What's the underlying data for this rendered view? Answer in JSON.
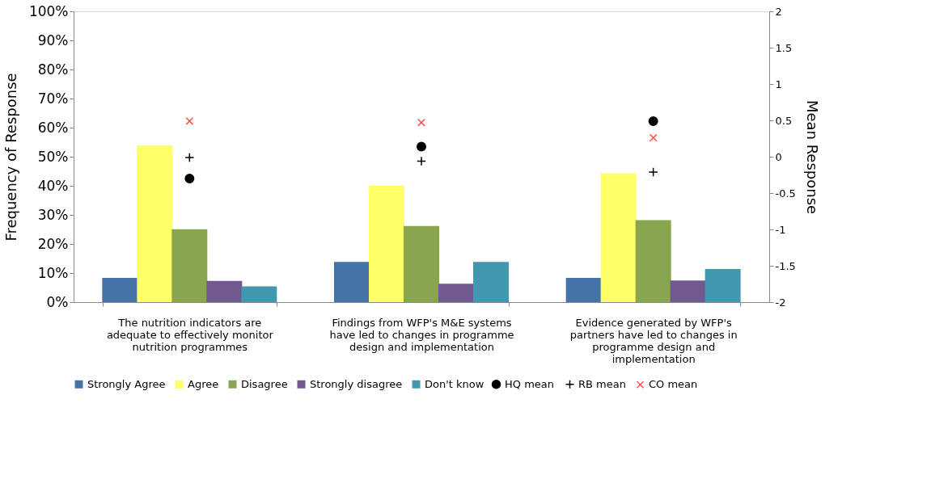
{
  "chart_data": {
    "type": "bar",
    "ylabel": "Frequency of Response",
    "y2label": "Mean Response",
    "categories": [
      "The nutrition indicators are adequate to effectively monitor nutrition programmes",
      "Findings from WFP's M&E systems have led to changes in programme design and implementation",
      "Evidence generated by WFP's partners have led to changes in programme design and implementation"
    ],
    "series": [
      {
        "name": "Strongly Agree",
        "color": "#4572a7",
        "values": [
          8.3,
          13.8,
          8.3
        ]
      },
      {
        "name": "Agree",
        "color": "#ffff66",
        "values": [
          53.8,
          40.1,
          44.3
        ]
      },
      {
        "name": "Disagree",
        "color": "#89a54e",
        "values": [
          25.1,
          26.2,
          28.2
        ]
      },
      {
        "name": "Strongly disagree",
        "color": "#71588f",
        "values": [
          7.3,
          6.3,
          7.4
        ]
      },
      {
        "name": "Don't know",
        "color": "#4198af",
        "values": [
          5.4,
          13.8,
          11.4
        ]
      },
      {
        "name": "HQ mean",
        "type": "scatter",
        "axis": "y2",
        "marker": "circle",
        "color": "#000000",
        "values": [
          -0.3,
          0.14,
          0.49
        ]
      },
      {
        "name": "RB mean",
        "type": "scatter",
        "axis": "y2",
        "marker": "plus",
        "color": "#000000",
        "values": [
          -0.01,
          -0.06,
          -0.21
        ]
      },
      {
        "name": "CO mean",
        "type": "scatter",
        "axis": "y2",
        "marker": "x",
        "color": "#ff5050",
        "values": [
          0.49,
          0.47,
          0.26
        ]
      }
    ],
    "ylim": [
      0,
      100
    ],
    "yticks": [
      {
        "value": 0,
        "label": "0%"
      },
      {
        "value": 10,
        "label": "10%"
      },
      {
        "value": 20,
        "label": "20%"
      },
      {
        "value": 30,
        "label": "30%"
      },
      {
        "value": 40,
        "label": "40%"
      },
      {
        "value": 50,
        "label": "50%"
      },
      {
        "value": 60,
        "label": "60%"
      },
      {
        "value": 70,
        "label": "70%"
      },
      {
        "value": 80,
        "label": "80%"
      },
      {
        "value": 90,
        "label": "90%"
      },
      {
        "value": 100,
        "label": "100%"
      }
    ],
    "y2lim": [
      -2,
      2
    ],
    "y2ticks": [
      -2,
      -1.5,
      -1,
      -0.5,
      0,
      0.5,
      1,
      1.5,
      2
    ],
    "grid": false,
    "legend": "bottom"
  }
}
